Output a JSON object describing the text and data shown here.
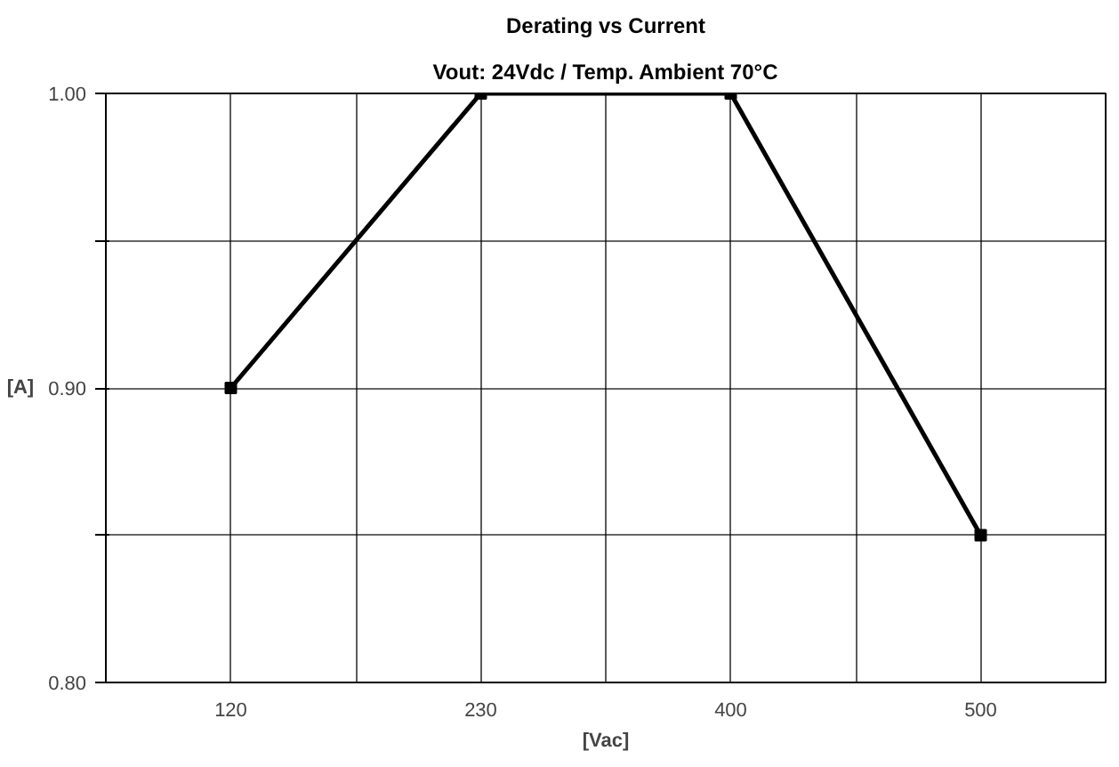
{
  "chart_data": {
    "type": "line",
    "title": "Derating vs Current",
    "subtitle": "Vout: 24Vdc / Temp. Ambient 70°C",
    "xlabel": "[Vac]",
    "ylabel": "[A]",
    "categories": [
      "120",
      "230",
      "400",
      "500"
    ],
    "series": [
      {
        "color": "#000000",
        "values": [
          0.9,
          1.0,
          1.0,
          0.85
        ]
      }
    ],
    "ylim": [
      0.8,
      1.0
    ],
    "yticks": [
      {
        "value": 0.8,
        "label": "0.80"
      },
      {
        "value": 0.85,
        "label": null
      },
      {
        "value": 0.9,
        "label": "0.90"
      },
      {
        "value": 0.95,
        "label": null
      },
      {
        "value": 1.0,
        "label": "1.00"
      }
    ],
    "grid": true,
    "marker": "square",
    "line_style": "solid"
  }
}
